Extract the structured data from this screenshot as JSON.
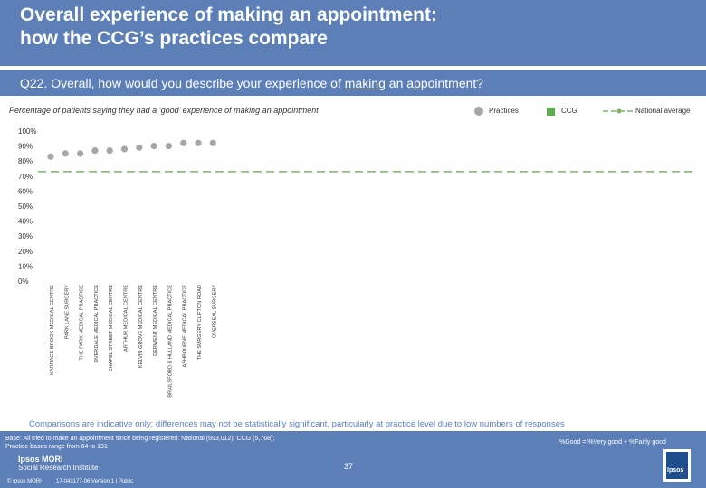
{
  "header": {
    "title_line1": "Overall experience of making an appointment:",
    "title_line2": "how the CCG’s practices compare"
  },
  "question": {
    "prefix": "Q22. Overall, how would you describe your experience of ",
    "underlined": "making",
    "suffix": " an appointment?"
  },
  "subtitle": "Percentage of patients saying they had a ‘good’ experience of making an appointment",
  "legend": {
    "practices": "Practices",
    "ccg": "CCG",
    "national": "National average"
  },
  "colors": {
    "header_bg": "#5b7fb6",
    "practice_dot": "#a6a6a6",
    "ccg": "#5ab04e",
    "national": "#7fb36a",
    "note_text": "#5a7fc3"
  },
  "chart_data": {
    "type": "scatter",
    "categories": [
      "KARRAGE BROOK MEDICAL CENTRE",
      "PARK LANE SURGERY",
      "THE PARK MEDICAL PRACTICE",
      "OVERDALE MEDICAL PRACTICE",
      "CHAPEL STREET MEDICAL CENTRE",
      "ARTHUR MEDICAL CENTRE",
      "KELVIN GROVE MEDICAL CENTRE",
      "DERWENT MEDICAL CENTRE",
      "BRAILSFORD & HULLAND MEDICAL PRACTICE",
      "ASHBOURNE MEDICAL PRACTICE",
      "THE SURGERY CLIFTON ROAD",
      "OVERSEAL SURGERY"
    ],
    "series": [
      {
        "name": "Practices",
        "values": [
          83,
          85,
          85,
          87,
          87,
          88,
          89,
          90,
          90,
          92,
          92,
          92
        ]
      }
    ],
    "ccg_value": null,
    "national_average": 73,
    "ylim": [
      0,
      100
    ],
    "yticks": [
      "0%",
      "10%",
      "20%",
      "30%",
      "40%",
      "50%",
      "60%",
      "70%",
      "80%",
      "90%",
      "100%"
    ],
    "xlabel": "",
    "ylabel": ""
  },
  "note": "Comparisons are indicative only: differences may not be statistically significant, particularly at practice level due to low numbers of responses",
  "footer": {
    "base_line1": "Base: All tried to make an appointment since being registered: National (693,012); CCG (5,768);",
    "base_line2": "Practice bases range from 64 to 131",
    "good_definition": "%Good = %Very good + %Fairly good",
    "brand_line1": "Ipsos MORI",
    "brand_line2": "Social Research Institute",
    "page_number": "37",
    "copyright": "© Ipsos MORI",
    "job": "17-043177-06 Version 1 | Public",
    "logo_text": "Ipsos"
  }
}
